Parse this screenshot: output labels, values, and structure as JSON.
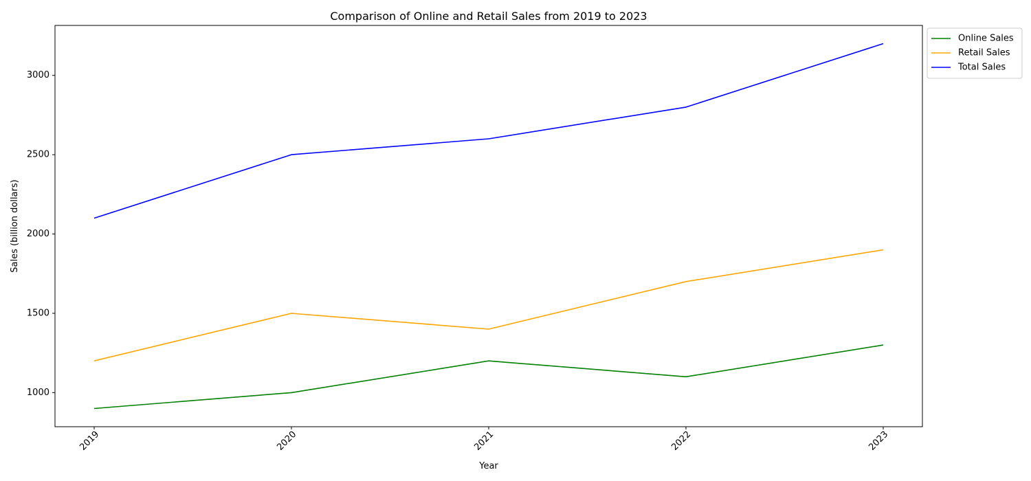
{
  "chart_data": {
    "type": "line",
    "title": "Comparison of Online and Retail Sales from 2019 to 2023",
    "xlabel": "Year",
    "ylabel": "Sales (billion dollars)",
    "categories": [
      "2019",
      "2020",
      "2021",
      "2022",
      "2023"
    ],
    "yticks": [
      "1000",
      "1500",
      "2000",
      "2500",
      "3000"
    ],
    "ylim": [
      785,
      3315
    ],
    "grid": false,
    "legend_position": "outside top-right",
    "series": [
      {
        "name": "Online Sales",
        "color": "#008000",
        "values": [
          900,
          1000,
          1200,
          1100,
          1300
        ]
      },
      {
        "name": "Retail Sales",
        "color": "#ffa500",
        "values": [
          1200,
          1500,
          1400,
          1700,
          1900
        ]
      },
      {
        "name": "Total Sales",
        "color": "#0000ff",
        "values": [
          2100,
          2500,
          2600,
          2800,
          3200
        ]
      }
    ]
  }
}
